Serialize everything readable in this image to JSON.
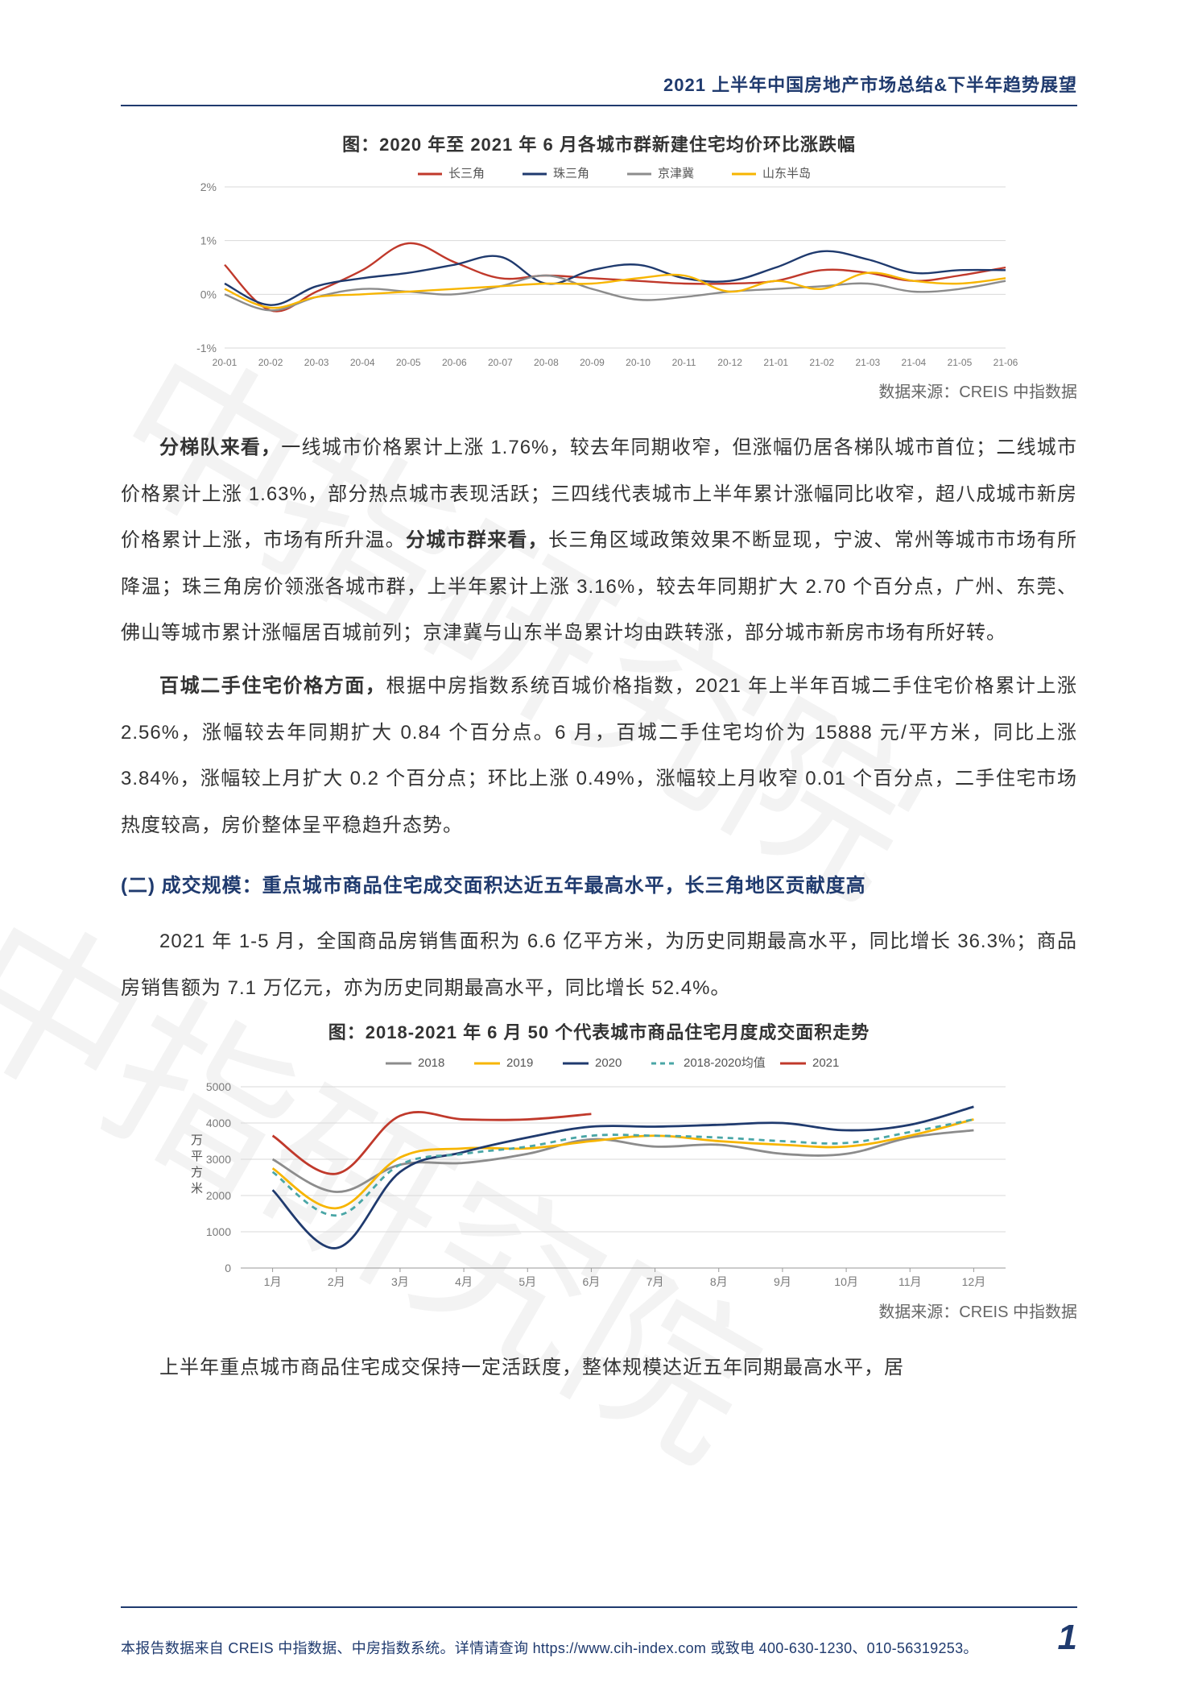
{
  "watermark": "中指研究院",
  "header": "2021 上半年中国房地产市场总结&下半年趋势展望",
  "chart1": {
    "type": "line",
    "title": "图：2020 年至 2021 年 6 月各城市群新建住宅均价环比涨跌幅",
    "source": "数据来源：CREIS 中指数据",
    "legend": [
      "长三角",
      "珠三角",
      "京津冀",
      "山东半岛"
    ],
    "legend_colors": [
      "#c0392b",
      "#1f3a6e",
      "#8c8c8c",
      "#f7b500"
    ],
    "x_labels": [
      "20-01",
      "20-02",
      "20-03",
      "20-04",
      "20-05",
      "20-06",
      "20-07",
      "20-08",
      "20-09",
      "20-10",
      "20-11",
      "20-12",
      "21-01",
      "21-02",
      "21-03",
      "21-04",
      "21-05",
      "21-06"
    ],
    "y_labels": [
      "-1%",
      "0%",
      "1%",
      "2%"
    ],
    "ylim": [
      -1,
      2
    ],
    "series": {
      "csj": [
        0.55,
        -0.3,
        0.05,
        0.45,
        0.95,
        0.6,
        0.3,
        0.35,
        0.3,
        0.25,
        0.2,
        0.2,
        0.25,
        0.45,
        0.4,
        0.25,
        0.35,
        0.5
      ],
      "zsj": [
        0.2,
        -0.2,
        0.15,
        0.3,
        0.4,
        0.55,
        0.7,
        0.2,
        0.45,
        0.55,
        0.3,
        0.25,
        0.5,
        0.8,
        0.65,
        0.4,
        0.45,
        0.45
      ],
      "jjj": [
        0.0,
        -0.3,
        -0.05,
        0.1,
        0.05,
        0.0,
        0.15,
        0.35,
        0.1,
        -0.1,
        -0.05,
        0.05,
        0.1,
        0.15,
        0.2,
        0.05,
        0.1,
        0.25
      ],
      "sdbd": [
        0.1,
        -0.25,
        -0.05,
        0.0,
        0.05,
        0.1,
        0.15,
        0.2,
        0.2,
        0.3,
        0.35,
        0.05,
        0.25,
        0.1,
        0.4,
        0.25,
        0.2,
        0.3
      ]
    },
    "bg_color": "#ffffff",
    "grid_color": "#d9d9d9",
    "axis_color": "#999999",
    "line_width": 2.4,
    "label_fontsize": 14,
    "label_color": "#7a7a7a"
  },
  "para1_lead": "分梯队来看，",
  "para1_rest": "一线城市价格累计上涨 1.76%，较去年同期收窄，但涨幅仍居各梯队城市首位；二线城市价格累计上涨 1.63%，部分热点城市表现活跃；三四线代表城市上半年累计涨幅同比收窄，超八成城市新房价格累计上涨，市场有所升温。",
  "para1_lead2": "分城市群来看，",
  "para1_rest2": "长三角区域政策效果不断显现，宁波、常州等城市市场有所降温；珠三角房价领涨各城市群，上半年累计上涨 3.16%，较去年同期扩大 2.70 个百分点，广州、东莞、佛山等城市累计涨幅居百城前列；京津冀与山东半岛累计均由跌转涨，部分城市新房市场有所好转。",
  "para2_lead": "百城二手住宅价格方面，",
  "para2_rest": "根据中房指数系统百城价格指数，2021 年上半年百城二手住宅价格累计上涨 2.56%，涨幅较去年同期扩大 0.84 个百分点。6 月，百城二手住宅均价为 15888 元/平方米，同比上涨 3.84%，涨幅较上月扩大 0.2 个百分点；环比上涨 0.49%，涨幅较上月收窄 0.01 个百分点，二手住宅市场热度较高，房价整体呈平稳趋升态势。",
  "section_heading": "(二) 成交规模：重点城市商品住宅成交面积达近五年最高水平，长三角地区贡献度高",
  "para3": "2021 年 1-5 月，全国商品房销售面积为 6.6 亿平方米，为历史同期最高水平，同比增长 36.3%；商品房销售额为 7.1 万亿元，亦为历史同期最高水平，同比增长 52.4%。",
  "chart2": {
    "type": "line",
    "title": "图：2018-2021 年 6 月 50 个代表城市商品住宅月度成交面积走势",
    "source": "数据来源：CREIS 中指数据",
    "legend": [
      "2018",
      "2019",
      "2020",
      "2018-2020均值",
      "2021"
    ],
    "legend_colors": [
      "#8c8c8c",
      "#f7b500",
      "#1f3a6e",
      "#4aa6a6",
      "#c0392b"
    ],
    "legend_dash": [
      false,
      false,
      false,
      true,
      false
    ],
    "y_label": "万平方米",
    "x_labels": [
      "1月",
      "2月",
      "3月",
      "4月",
      "5月",
      "6月",
      "7月",
      "8月",
      "9月",
      "10月",
      "11月",
      "12月"
    ],
    "y_ticks": [
      0,
      1000,
      2000,
      3000,
      4000,
      5000
    ],
    "ylim": [
      0,
      5200
    ],
    "series": {
      "y2018": [
        3000,
        2100,
        2850,
        2900,
        3150,
        3550,
        3350,
        3400,
        3150,
        3150,
        3600,
        3800
      ],
      "y2019": [
        2750,
        1650,
        3050,
        3300,
        3300,
        3500,
        3650,
        3500,
        3400,
        3350,
        3650,
        4100
      ],
      "y2020": [
        2150,
        550,
        2650,
        3200,
        3600,
        3900,
        3900,
        3950,
        4000,
        3800,
        3950,
        4450
      ],
      "avg": [
        2650,
        1450,
        2850,
        3150,
        3350,
        3650,
        3650,
        3600,
        3500,
        3450,
        3750,
        4100
      ],
      "y2021": [
        3650,
        2600,
        4200,
        4100,
        4100,
        4250,
        null,
        null,
        null,
        null,
        null,
        null
      ]
    },
    "bg_color": "#ffffff",
    "grid_color": "#d9d9d9",
    "axis_color": "#999999",
    "line_width": 2.8,
    "label_fontsize": 14,
    "label_color": "#7a7a7a"
  },
  "para4": "上半年重点城市商品住宅成交保持一定活跃度，整体规模达近五年同期最高水平，居",
  "footer_text": "本报告数据来自 CREIS 中指数据、中房指数系统。详情请查询 https://www.cih-index.com 或致电 400-630-1230、010-56319253。",
  "page_number": "1"
}
